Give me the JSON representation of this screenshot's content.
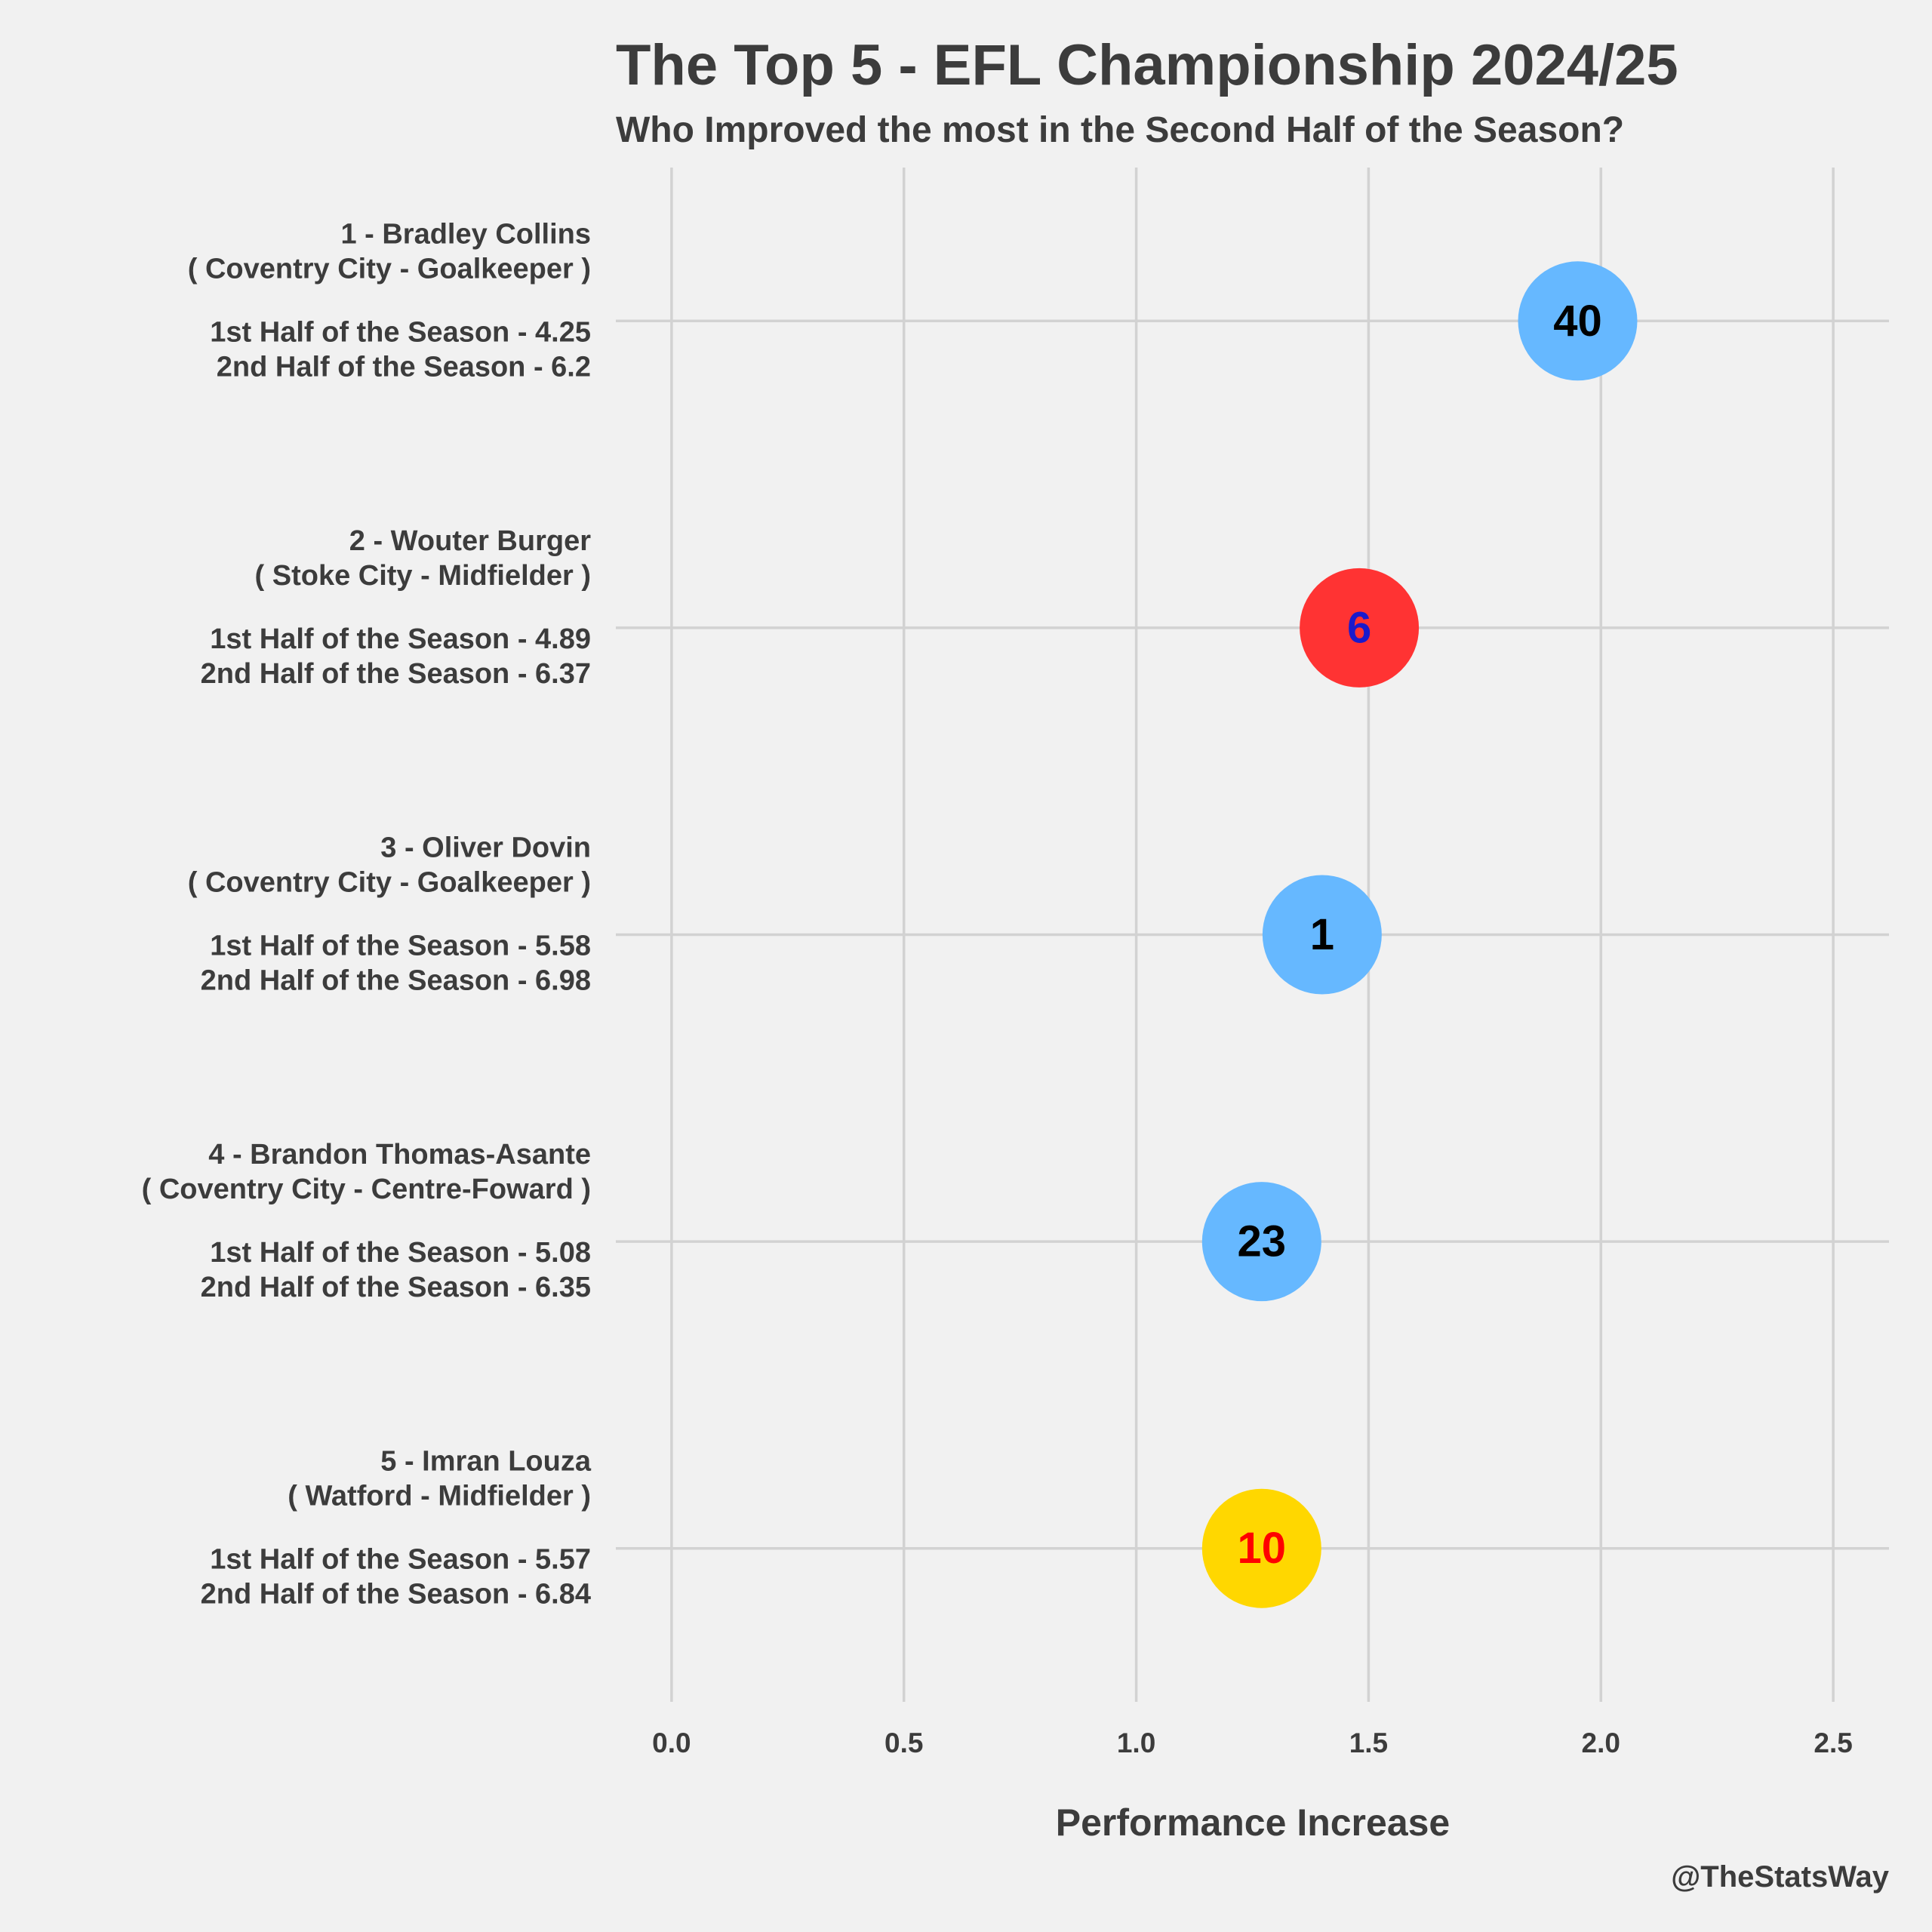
{
  "chart_data": {
    "type": "scatter",
    "title": "The Top 5 - EFL Championship 2024/25",
    "subtitle": "Who Improved the most in the Second Half of the Season?",
    "xlabel": "Performance Increase",
    "credit": "@TheStatsWay",
    "xlim": [
      -0.12,
      2.62
    ],
    "xticks": [
      "0.0",
      "0.5",
      "1.0",
      "1.5",
      "2.0",
      "2.5"
    ],
    "grid": true,
    "players": [
      {
        "lines": [
          "1 - Bradley Collins",
          "( Coventry City - Goalkeeper )",
          "",
          "1st Half of the Season - 4.25",
          "2nd Half of the Season - 6.2"
        ],
        "value": 1.95,
        "shirt": "40",
        "fill": "#66b8ff",
        "text_color": "#000000"
      },
      {
        "lines": [
          "2 - Wouter Burger",
          "( Stoke City - Midfielder )",
          "",
          "1st Half of the Season - 4.89",
          "2nd Half of the Season - 6.37"
        ],
        "value": 1.48,
        "shirt": "6",
        "fill": "#ff3333",
        "text_color": "#1a1acc"
      },
      {
        "lines": [
          "3 - Oliver Dovin",
          "( Coventry City - Goalkeeper )",
          "",
          "1st Half of the Season - 5.58",
          "2nd Half of the Season - 6.98"
        ],
        "value": 1.4,
        "shirt": "1",
        "fill": "#66b8ff",
        "text_color": "#000000"
      },
      {
        "lines": [
          "4 - Brandon Thomas-Asante",
          "( Coventry City - Centre-Foward )",
          "",
          "1st Half of the Season - 5.08",
          "2nd Half of the Season - 6.35"
        ],
        "value": 1.27,
        "shirt": "23",
        "fill": "#66b8ff",
        "text_color": "#000000"
      },
      {
        "lines": [
          "5 - Imran Louza",
          "( Watford - Midfielder )",
          "",
          "1st Half of the Season - 5.57",
          "2nd Half of the Season - 6.84"
        ],
        "value": 1.27,
        "shirt": "10",
        "fill": "#ffd700",
        "text_color": "#ff0000"
      }
    ]
  }
}
